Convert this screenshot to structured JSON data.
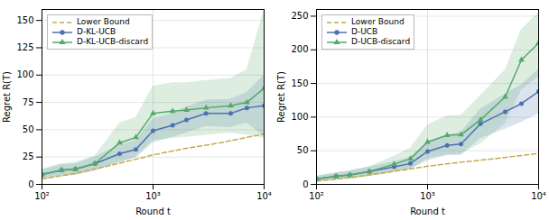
{
  "chart_data": [
    {
      "type": "line",
      "xlabel": "Round t",
      "ylabel": "Regret R(T)",
      "log": "x",
      "grid": true,
      "legend": "upper left",
      "xlim": [
        100,
        10000
      ],
      "xticks": [
        {
          "value": 100,
          "label": "10²"
        },
        {
          "value": 1000,
          "label": "10³"
        },
        {
          "value": 10000,
          "label": "10⁴"
        }
      ],
      "ylim": [
        0,
        160
      ],
      "yticks": [
        0,
        25,
        50,
        75,
        100,
        125,
        150
      ],
      "series": [
        {
          "name": "Lower Bound",
          "color": "#C8A84B",
          "line_style": "dashed",
          "x": [
            100,
            200,
            400,
            700,
            1000,
            2000,
            4000,
            7000,
            10000
          ],
          "values": [
            5,
            10,
            17,
            23,
            27,
            33,
            38,
            43,
            46
          ]
        },
        {
          "name": "D-KL-UCB",
          "color": "#4C72B0",
          "line_style": "solid",
          "marker": "circle",
          "x": [
            100,
            150,
            200,
            300,
            500,
            700,
            1000,
            1500,
            2000,
            3000,
            5000,
            7000,
            10000
          ],
          "values": [
            9,
            13,
            14,
            19,
            28,
            32,
            49,
            54,
            59,
            65,
            65,
            70,
            72
          ],
          "y_lo": [
            5,
            8,
            9,
            13,
            20,
            24,
            38,
            43,
            47,
            53,
            52,
            56,
            44
          ],
          "y_hi": [
            13,
            18,
            19,
            25,
            36,
            40,
            60,
            65,
            71,
            77,
            78,
            84,
            100
          ]
        },
        {
          "name": "D-KL-UCB-discard",
          "color": "#55A868",
          "line_style": "solid",
          "marker": "triangle",
          "x": [
            100,
            150,
            200,
            300,
            500,
            700,
            1000,
            1500,
            2000,
            3000,
            5000,
            7000,
            10000
          ],
          "values": [
            9,
            13,
            14,
            19,
            38,
            43,
            65,
            67,
            68,
            70,
            72,
            75,
            88
          ],
          "y_lo": [
            4,
            7,
            8,
            12,
            20,
            25,
            40,
            42,
            43,
            45,
            47,
            45,
            42
          ],
          "y_hi": [
            14,
            19,
            20,
            26,
            56,
            61,
            90,
            93,
            93,
            95,
            97,
            105,
            160
          ]
        }
      ]
    },
    {
      "type": "line",
      "xlabel": "Round t",
      "ylabel": "Regret R(T)",
      "log": "x",
      "grid": true,
      "legend": "upper left",
      "xlim": [
        100,
        10000
      ],
      "xticks": [
        {
          "value": 100,
          "label": "10²"
        },
        {
          "value": 1000,
          "label": "10³"
        },
        {
          "value": 10000,
          "label": "10⁴"
        }
      ],
      "ylim": [
        0,
        260
      ],
      "yticks": [
        0,
        50,
        100,
        150,
        200,
        250
      ],
      "series": [
        {
          "name": "Lower Bound",
          "color": "#C8A84B",
          "line_style": "dashed",
          "x": [
            100,
            200,
            400,
            700,
            1000,
            2000,
            4000,
            7000,
            10000
          ],
          "values": [
            5,
            10,
            17,
            23,
            27,
            33,
            38,
            43,
            46
          ]
        },
        {
          "name": "D-UCB",
          "color": "#4C72B0",
          "line_style": "solid",
          "marker": "circle",
          "x": [
            100,
            150,
            200,
            300,
            500,
            700,
            1000,
            1500,
            2000,
            3000,
            5000,
            7000,
            10000
          ],
          "values": [
            8,
            12,
            14,
            19,
            26,
            31,
            49,
            58,
            60,
            90,
            108,
            120,
            138
          ],
          "y_lo": [
            4,
            7,
            8,
            12,
            18,
            22,
            35,
            43,
            43,
            68,
            82,
            92,
            105
          ],
          "y_hi": [
            12,
            17,
            20,
            26,
            34,
            40,
            63,
            73,
            77,
            112,
            134,
            148,
            171
          ]
        },
        {
          "name": "D-UCB-discard",
          "color": "#55A868",
          "line_style": "solid",
          "marker": "triangle",
          "x": [
            100,
            150,
            200,
            300,
            500,
            700,
            1000,
            1500,
            2000,
            3000,
            5000,
            7000,
            10000
          ],
          "values": [
            8,
            12,
            14,
            19,
            30,
            38,
            63,
            73,
            74,
            96,
            130,
            185,
            210
          ],
          "y_lo": [
            4,
            7,
            8,
            12,
            18,
            22,
            38,
            44,
            45,
            60,
            90,
            140,
            160
          ],
          "y_hi": [
            12,
            17,
            20,
            26,
            42,
            54,
            88,
            102,
            103,
            132,
            170,
            230,
            255
          ]
        }
      ]
    }
  ]
}
